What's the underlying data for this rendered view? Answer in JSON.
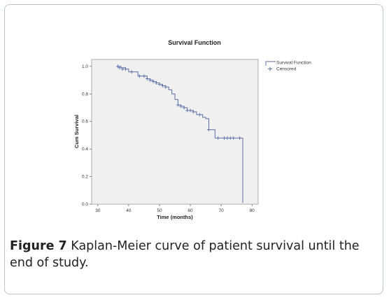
{
  "chart_data": {
    "type": "line",
    "title": "Survival Function",
    "xlabel": "Time (months)",
    "ylabel": "Cum Survival",
    "xlim": [
      28,
      82
    ],
    "ylim": [
      0,
      1.05
    ],
    "xticks": [
      30,
      40,
      50,
      60,
      70,
      80
    ],
    "yticks": [
      0.0,
      0.2,
      0.4,
      0.6,
      0.8,
      1.0
    ],
    "xtick_labels": [
      "30",
      "40",
      "50",
      "60",
      "70",
      "80"
    ],
    "ytick_labels": [
      "0.0",
      "0.2",
      "0.4",
      "0.6",
      "0.8",
      "1.0"
    ],
    "legend": {
      "position": "right",
      "items": [
        "Survival Function",
        "Censored"
      ]
    },
    "series": [
      {
        "name": "Survival Function",
        "x": [
          36,
          37.5,
          39,
          40,
          42,
          43,
          45,
          46,
          47,
          48,
          49,
          50,
          51,
          52,
          53,
          54,
          55,
          56,
          57,
          58,
          59,
          61,
          62,
          64,
          65,
          66,
          67,
          68,
          77,
          77
        ],
        "y": [
          1.0,
          0.99,
          0.98,
          0.96,
          0.96,
          0.93,
          0.93,
          0.91,
          0.9,
          0.89,
          0.88,
          0.87,
          0.86,
          0.85,
          0.83,
          0.8,
          0.76,
          0.72,
          0.71,
          0.7,
          0.68,
          0.67,
          0.65,
          0.63,
          0.62,
          0.54,
          0.54,
          0.48,
          0.48,
          0.01
        ]
      }
    ],
    "censored": {
      "name": "Censored",
      "x": [
        36.5,
        37,
        38,
        39,
        41,
        43.5,
        45,
        46,
        47,
        48,
        49,
        50,
        51,
        52,
        56,
        57,
        58,
        59,
        60,
        61,
        63,
        66,
        69,
        71,
        72,
        73,
        74,
        76
      ],
      "y": [
        1.0,
        0.99,
        0.98,
        0.98,
        0.96,
        0.93,
        0.93,
        0.91,
        0.9,
        0.89,
        0.88,
        0.87,
        0.86,
        0.85,
        0.72,
        0.71,
        0.7,
        0.68,
        0.68,
        0.67,
        0.65,
        0.54,
        0.48,
        0.48,
        0.48,
        0.48,
        0.48,
        0.48
      ]
    },
    "colors": {
      "line": "#5b6fa8",
      "plot_bg": "#f0f0f0",
      "axis": "#555555"
    }
  },
  "caption": {
    "label": "Figure 7",
    "text": " Kaplan-Meier curve of patient survival until the end of study."
  }
}
